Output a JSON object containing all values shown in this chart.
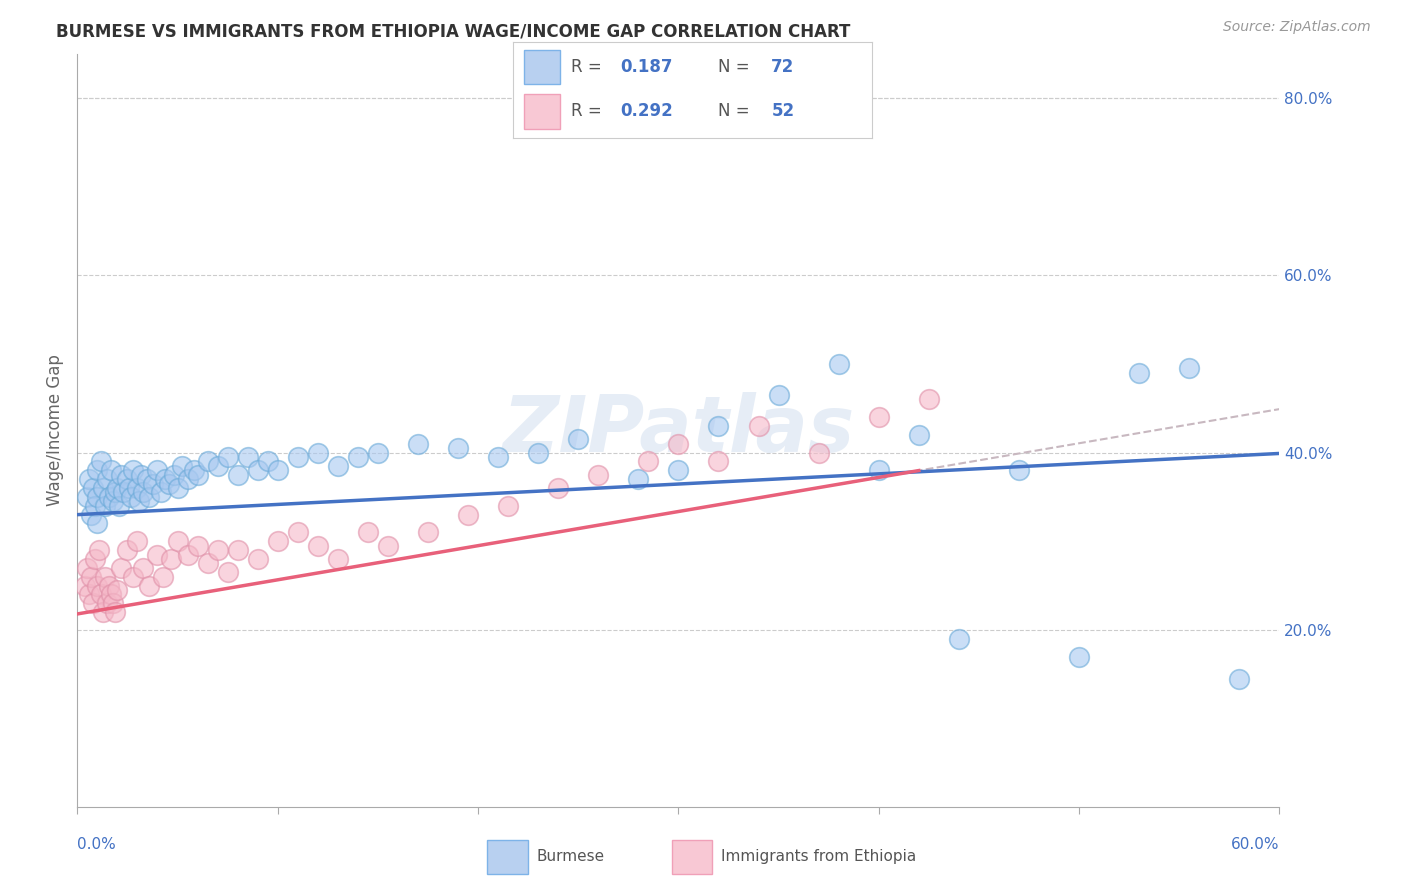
{
  "title": "BURMESE VS IMMIGRANTS FROM ETHIOPIA WAGE/INCOME GAP CORRELATION CHART",
  "source": "Source: ZipAtlas.com",
  "ylabel": "Wage/Income Gap",
  "xmin": 0.0,
  "xmax": 0.6,
  "ymin": 0.0,
  "ymax": 0.85,
  "legend1_R": "0.187",
  "legend1_N": "72",
  "legend2_R": "0.292",
  "legend2_N": "52",
  "blue_color": "#A8C8F0",
  "pink_color": "#F5B8C8",
  "line_blue": "#4472C4",
  "line_pink": "#E8607A",
  "line_dashed_color": "#C8B8C0",
  "watermark": "ZIPatlas",
  "blue_intercept": 0.33,
  "blue_slope": 0.115,
  "pink_intercept": 0.218,
  "pink_slope": 0.385,
  "burmese_x": [
    0.005,
    0.006,
    0.007,
    0.008,
    0.009,
    0.01,
    0.01,
    0.01,
    0.012,
    0.013,
    0.014,
    0.015,
    0.016,
    0.017,
    0.018,
    0.019,
    0.02,
    0.021,
    0.022,
    0.023,
    0.025,
    0.026,
    0.027,
    0.028,
    0.03,
    0.031,
    0.032,
    0.033,
    0.035,
    0.036,
    0.038,
    0.04,
    0.042,
    0.044,
    0.046,
    0.048,
    0.05,
    0.052,
    0.055,
    0.058,
    0.06,
    0.065,
    0.07,
    0.075,
    0.08,
    0.085,
    0.09,
    0.095,
    0.1,
    0.11,
    0.12,
    0.13,
    0.14,
    0.15,
    0.17,
    0.19,
    0.21,
    0.23,
    0.25,
    0.28,
    0.3,
    0.32,
    0.35,
    0.38,
    0.4,
    0.42,
    0.44,
    0.47,
    0.5,
    0.53,
    0.555,
    0.58
  ],
  "burmese_y": [
    0.35,
    0.37,
    0.33,
    0.36,
    0.34,
    0.38,
    0.35,
    0.32,
    0.39,
    0.36,
    0.34,
    0.37,
    0.35,
    0.38,
    0.345,
    0.355,
    0.36,
    0.34,
    0.375,
    0.355,
    0.37,
    0.36,
    0.35,
    0.38,
    0.36,
    0.345,
    0.375,
    0.355,
    0.37,
    0.35,
    0.365,
    0.38,
    0.355,
    0.37,
    0.365,
    0.375,
    0.36,
    0.385,
    0.37,
    0.38,
    0.375,
    0.39,
    0.385,
    0.395,
    0.375,
    0.395,
    0.38,
    0.39,
    0.38,
    0.395,
    0.4,
    0.385,
    0.395,
    0.4,
    0.41,
    0.405,
    0.395,
    0.4,
    0.415,
    0.37,
    0.38,
    0.43,
    0.465,
    0.5,
    0.38,
    0.42,
    0.19,
    0.38,
    0.17,
    0.49,
    0.495,
    0.145
  ],
  "ethiopia_x": [
    0.004,
    0.005,
    0.006,
    0.007,
    0.008,
    0.009,
    0.01,
    0.011,
    0.012,
    0.013,
    0.014,
    0.015,
    0.016,
    0.017,
    0.018,
    0.019,
    0.02,
    0.022,
    0.025,
    0.028,
    0.03,
    0.033,
    0.036,
    0.04,
    0.043,
    0.047,
    0.05,
    0.055,
    0.06,
    0.065,
    0.07,
    0.075,
    0.08,
    0.09,
    0.1,
    0.11,
    0.12,
    0.13,
    0.145,
    0.155,
    0.175,
    0.195,
    0.215,
    0.24,
    0.26,
    0.285,
    0.3,
    0.32,
    0.34,
    0.37,
    0.4,
    0.425
  ],
  "ethiopia_y": [
    0.25,
    0.27,
    0.24,
    0.26,
    0.23,
    0.28,
    0.25,
    0.29,
    0.24,
    0.22,
    0.26,
    0.23,
    0.25,
    0.24,
    0.23,
    0.22,
    0.245,
    0.27,
    0.29,
    0.26,
    0.3,
    0.27,
    0.25,
    0.285,
    0.26,
    0.28,
    0.3,
    0.285,
    0.295,
    0.275,
    0.29,
    0.265,
    0.29,
    0.28,
    0.3,
    0.31,
    0.295,
    0.28,
    0.31,
    0.295,
    0.31,
    0.33,
    0.34,
    0.36,
    0.375,
    0.39,
    0.41,
    0.39,
    0.43,
    0.4,
    0.44,
    0.46
  ]
}
